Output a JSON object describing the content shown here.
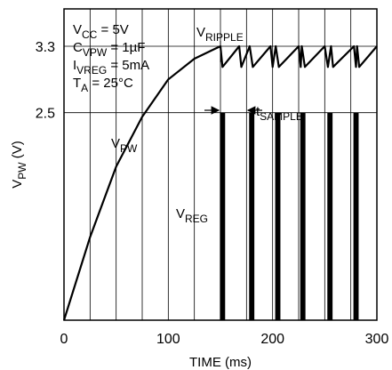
{
  "chart_data": {
    "type": "line",
    "xlabel": "TIME (ms)",
    "ylabel": {
      "main": "V",
      "sub": "PW",
      "unit": " (V)"
    },
    "xlim": [
      0,
      300
    ],
    "ylim": [
      0,
      3.75
    ],
    "x_ticks": [
      {
        "value": 0,
        "label": "0"
      },
      {
        "value": 100,
        "label": "100"
      },
      {
        "value": 200,
        "label": "200"
      },
      {
        "value": 300,
        "label": "300"
      }
    ],
    "y_ticks": [
      {
        "value": 3.3,
        "label": "3.3"
      },
      {
        "value": 2.5,
        "label": "2.5"
      }
    ],
    "grid": {
      "x_step": 25,
      "y_values": [
        2.5,
        3.3
      ]
    },
    "conditions": [
      {
        "main": "V",
        "sub": "CC",
        "rest": " = 5V"
      },
      {
        "main": "C",
        "sub": "VPW",
        "rest": " = 1µF"
      },
      {
        "main": "I",
        "sub": "VREG",
        "rest": " = 5mA"
      },
      {
        "main": "T",
        "sub": "A",
        "rest": " = 25°C"
      }
    ],
    "annotations": {
      "vpw": {
        "main": "V",
        "sub": "PW"
      },
      "vreg": {
        "main": "V",
        "sub": "REG"
      },
      "vripple": {
        "main": "V",
        "sub": "RIPPLE"
      },
      "tsample": {
        "main": "t",
        "sub": "SAMPLE"
      }
    },
    "series": [
      {
        "values": [
          [
            0,
            0
          ],
          [
            25,
            1.0
          ],
          [
            50,
            1.85
          ],
          [
            75,
            2.45
          ],
          [
            100,
            2.9
          ],
          [
            125,
            3.15
          ],
          [
            145,
            3.27
          ],
          [
            150,
            3.3
          ],
          [
            152,
            3.05
          ],
          [
            168,
            3.3
          ],
          [
            170,
            3.05
          ],
          [
            178,
            3.3
          ],
          [
            181,
            3.05
          ],
          [
            198,
            3.3
          ],
          [
            200,
            3.05
          ],
          [
            203,
            3.3
          ],
          [
            206,
            3.05
          ],
          [
            225,
            3.3
          ],
          [
            227,
            3.05
          ],
          [
            228,
            3.3
          ],
          [
            231,
            3.05
          ],
          [
            250,
            3.3
          ],
          [
            253,
            3.05
          ],
          [
            256,
            3.3
          ],
          [
            258,
            3.05
          ],
          [
            278,
            3.3
          ],
          [
            280,
            3.05
          ],
          [
            281,
            3.3
          ],
          [
            283,
            3.05
          ],
          [
            300,
            3.3
          ]
        ]
      }
    ],
    "vreg_pulses": {
      "x": [
        152,
        180,
        205,
        229,
        255,
        280
      ],
      "width_ms": 5,
      "high_v": 2.5
    }
  }
}
